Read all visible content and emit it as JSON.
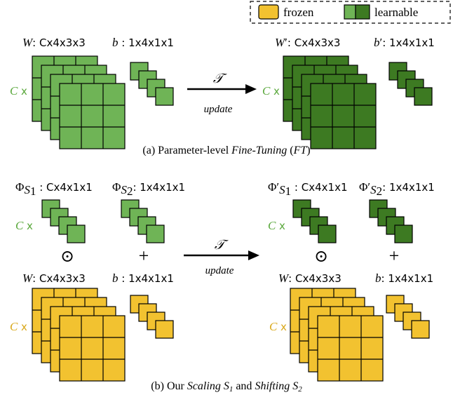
{
  "legend": {
    "frozen_label": "frozen",
    "learnable_label": "learnable"
  },
  "colors": {
    "frozen": "#f2c230",
    "learnable_dark": "#3d7a22",
    "learnable_light": "#6fb456",
    "cx_green": "#5aa83c",
    "cx_yellow": "#d9a81a"
  },
  "panel_a": {
    "w_label": {
      "sym": "W",
      "sep": ": ",
      "dims": "Cx4x3x3"
    },
    "b_label": {
      "sym": "b",
      "sep": " : ",
      "dims": "1x4x1x1"
    },
    "w_prime_label": {
      "sym": "W",
      "prime": "′",
      "sep": ": ",
      "dims": "Cx4x3x3"
    },
    "b_prime_label": {
      "sym": "b",
      "prime": "′",
      "sep": ": ",
      "dims": "1x4x1x1"
    },
    "c_left": "C",
    "x_left": "x",
    "c_right": "C",
    "x_right": "x",
    "arrow_top": "𝒯",
    "arrow_bottom": "update",
    "caption": {
      "pre": "(a) Parameter-level ",
      "em": "Fine-Tuning",
      "mid": " (",
      "abbr": "FT",
      "post": ")"
    }
  },
  "panel_b": {
    "phi1_label": {
      "sym": "Φ",
      "sub": "S",
      "subsub": "1",
      "sep": " : ",
      "dims": "Cx4x1x1"
    },
    "phi2_label": {
      "sym": "Φ",
      "sub": "S",
      "subsub": "2",
      "sep": ": ",
      "dims": "1x4x1x1"
    },
    "phi1p_label": {
      "sym": "Φ′",
      "sub": "S",
      "subsub": "1",
      "sep": " : ",
      "dims": "Cx4x1x1"
    },
    "phi2p_label": {
      "sym": "Φ′",
      "sub": "S",
      "subsub": "2",
      "sep": ": ",
      "dims": "1x4x1x1"
    },
    "w_left": {
      "sym": "W",
      "sep": ": ",
      "dims": "Cx4x3x3"
    },
    "b_left": {
      "sym": "b",
      "sep": " : ",
      "dims": "1x4x1x1"
    },
    "w_right": {
      "sym": "W",
      "sep": ": ",
      "dims": "Cx4x3x3"
    },
    "b_right": {
      "sym": "b",
      "sep": ": ",
      "dims": "1x4x1x1"
    },
    "c_label": "C",
    "x_label": "x",
    "odot": "⊙",
    "plus": "+",
    "arrow_top": "𝒯",
    "arrow_bottom": "update",
    "caption": {
      "pre": "(b) Our ",
      "em1": "Scaling S",
      "sub1": "1",
      "mid": " and ",
      "em2": "Shifting S",
      "sub2": "2"
    }
  }
}
